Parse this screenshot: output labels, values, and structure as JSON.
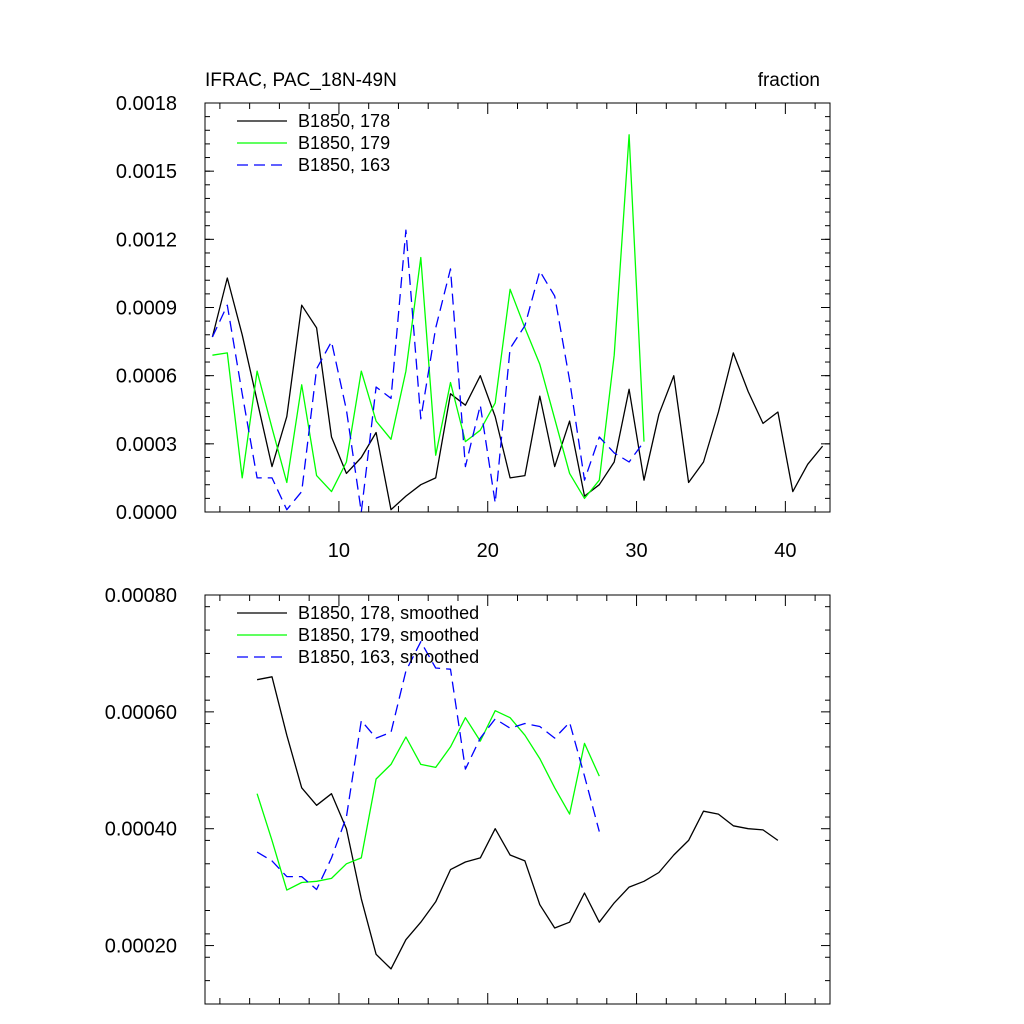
{
  "chart_data": [
    {
      "type": "line",
      "title": "IFRAC, PAC_18N-49N",
      "units_label": "fraction",
      "xlim": [
        1,
        43
      ],
      "ylim": [
        0,
        0.0018
      ],
      "x_ticks": [
        10,
        20,
        30,
        40
      ],
      "x_tick_labels": [
        "10",
        "20",
        "30",
        "40"
      ],
      "y_ticks": [
        0,
        0.0003,
        0.0006,
        0.0009,
        0.0012,
        0.0015,
        0.0018
      ],
      "y_tick_labels": [
        "0.0000",
        "0.0003",
        "0.0006",
        "0.0009",
        "0.0012",
        "0.0015",
        "0.0018"
      ],
      "legend_position": "top-left",
      "series": [
        {
          "name": "B1850, 178",
          "color": "#000000",
          "dash": "solid",
          "x": [
            1.5,
            2.5,
            3.5,
            4.5,
            5.5,
            6.5,
            7.5,
            8.5,
            9.5,
            10.5,
            11.5,
            12.5,
            13.5,
            14.5,
            15.5,
            16.5,
            17.5,
            18.5,
            19.5,
            20.5,
            21.5,
            22.5,
            23.5,
            24.5,
            25.5,
            26.5,
            27.5,
            28.5,
            29.5,
            30.5,
            31.5,
            32.5,
            33.5,
            34.5,
            35.5,
            36.5,
            37.5,
            38.5,
            39.5,
            40.5,
            41.5,
            42.5
          ],
          "values": [
            0.00077,
            0.00103,
            0.00078,
            0.00049,
            0.0002,
            0.00042,
            0.00091,
            0.00081,
            0.00033,
            0.00017,
            0.00024,
            0.00035,
            1e-05,
            7e-05,
            0.00012,
            0.00015,
            0.00052,
            0.00047,
            0.0006,
            0.00042,
            0.00015,
            0.00016,
            0.00051,
            0.0002,
            0.0004,
            7e-05,
            0.00012,
            0.00022,
            0.00054,
            0.00014,
            0.00043,
            0.0006,
            0.00013,
            0.00022,
            0.00044,
            0.0007,
            0.00053,
            0.00039,
            0.00044,
            9e-05,
            0.00021,
            0.00029
          ]
        },
        {
          "name": "B1850, 179",
          "color": "#00ff00",
          "dash": "solid",
          "x": [
            1.5,
            2.5,
            3.5,
            4.5,
            5.5,
            6.5,
            7.5,
            8.5,
            9.5,
            10.5,
            11.5,
            12.5,
            13.5,
            14.5,
            15.5,
            16.5,
            17.5,
            18.5,
            19.5,
            20.5,
            21.5,
            22.5,
            23.5,
            24.5,
            25.5,
            26.5,
            27.5,
            28.5,
            29.5,
            30.5
          ],
          "values": [
            0.00069,
            0.0007,
            0.00015,
            0.00062,
            0.00037,
            0.00013,
            0.00056,
            0.00016,
            9e-05,
            0.00022,
            0.00062,
            0.0004,
            0.00032,
            0.00062,
            0.00112,
            0.00025,
            0.00057,
            0.00031,
            0.00036,
            0.00048,
            0.00098,
            0.00081,
            0.00065,
            0.00041,
            0.00017,
            6e-05,
            0.00014,
            0.00069,
            0.00166,
            0.00031
          ]
        },
        {
          "name": "B1850, 163",
          "color": "#0000ff",
          "dash": "dashed",
          "x": [
            1.5,
            2.5,
            3.5,
            4.5,
            5.5,
            6.5,
            7.5,
            8.5,
            9.5,
            10.5,
            11.5,
            12.5,
            13.5,
            14.5,
            15.5,
            16.5,
            17.5,
            18.5,
            19.5,
            20.5,
            21.5,
            22.5,
            23.5,
            24.5,
            25.5,
            26.5,
            27.5,
            28.5,
            29.5,
            30.5
          ],
          "values": [
            0.00077,
            0.00091,
            0.00052,
            0.00015,
            0.00015,
            1e-05,
            9e-05,
            0.00063,
            0.00075,
            0.00045,
            0.0,
            0.00055,
            0.0005,
            0.00124,
            0.00041,
            0.00081,
            0.00107,
            0.0002,
            0.00047,
            4e-05,
            0.00072,
            0.00082,
            0.00106,
            0.00095,
            0.00058,
            0.00014,
            0.00033,
            0.00026,
            0.00022,
            0.00031
          ]
        }
      ]
    },
    {
      "type": "line",
      "xlim": [
        1,
        43
      ],
      "ylim": [
        0.0001,
        0.0008
      ],
      "x_ticks": [
        10,
        20,
        30,
        40
      ],
      "y_ticks": [
        0.0002,
        0.0004,
        0.0006,
        0.0008
      ],
      "y_tick_labels": [
        "0.00020",
        "0.00040",
        "0.00060",
        "0.00080"
      ],
      "legend_position": "top-left",
      "series": [
        {
          "name": "B1850, 178, smoothed",
          "color": "#000000",
          "dash": "solid",
          "x": [
            4.5,
            5.5,
            6.5,
            7.5,
            8.5,
            9.5,
            10.5,
            11.5,
            12.5,
            13.5,
            14.5,
            15.5,
            16.5,
            17.5,
            18.5,
            19.5,
            20.5,
            21.5,
            22.5,
            23.5,
            24.5,
            25.5,
            26.5,
            27.5,
            28.5,
            29.5,
            30.5,
            31.5,
            32.5,
            33.5,
            34.5,
            35.5,
            36.5,
            37.5,
            38.5,
            39.5
          ],
          "values": [
            0.000655,
            0.00066,
            0.00056,
            0.00047,
            0.00044,
            0.00046,
            0.0004,
            0.00028,
            0.000185,
            0.00016,
            0.00021,
            0.00024,
            0.000275,
            0.00033,
            0.000343,
            0.00035,
            0.0004,
            0.000355,
            0.000345,
            0.00027,
            0.00023,
            0.00024,
            0.00029,
            0.00024,
            0.000273,
            0.0003,
            0.00031,
            0.000325,
            0.000355,
            0.00038,
            0.00043,
            0.000425,
            0.000405,
            0.0004,
            0.000398,
            0.00038
          ]
        },
        {
          "name": "B1850, 179, smoothed",
          "color": "#00ff00",
          "dash": "solid",
          "x": [
            4.5,
            5.5,
            6.5,
            7.5,
            8.5,
            9.5,
            10.5,
            11.5,
            12.5,
            13.5,
            14.5,
            15.5,
            16.5,
            17.5,
            18.5,
            19.5,
            20.5,
            21.5,
            22.5,
            23.5,
            24.5,
            25.5,
            26.5,
            27.5
          ],
          "values": [
            0.00046,
            0.00038,
            0.000295,
            0.000308,
            0.00031,
            0.000315,
            0.00034,
            0.00035,
            0.000485,
            0.00051,
            0.000557,
            0.00051,
            0.000505,
            0.00054,
            0.00059,
            0.00055,
            0.000602,
            0.00059,
            0.00056,
            0.00052,
            0.00047,
            0.000425,
            0.000546,
            0.00049
          ]
        },
        {
          "name": "B1850, 163, smoothed",
          "color": "#0000ff",
          "dash": "dashed",
          "x": [
            4.5,
            5.5,
            6.5,
            7.5,
            8.5,
            9.5,
            10.5,
            11.5,
            12.5,
            13.5,
            14.5,
            15.5,
            16.5,
            17.5,
            18.5,
            19.5,
            20.5,
            21.5,
            22.5,
            23.5,
            24.5,
            25.5,
            26.5,
            27.5
          ],
          "values": [
            0.00036,
            0.000345,
            0.000318,
            0.000318,
            0.000296,
            0.00035,
            0.00042,
            0.000585,
            0.000555,
            0.000565,
            0.00067,
            0.00072,
            0.000675,
            0.000673,
            0.000502,
            0.000555,
            0.000588,
            0.000572,
            0.00058,
            0.000575,
            0.000555,
            0.000582,
            0.00049,
            0.000395
          ]
        }
      ]
    }
  ]
}
